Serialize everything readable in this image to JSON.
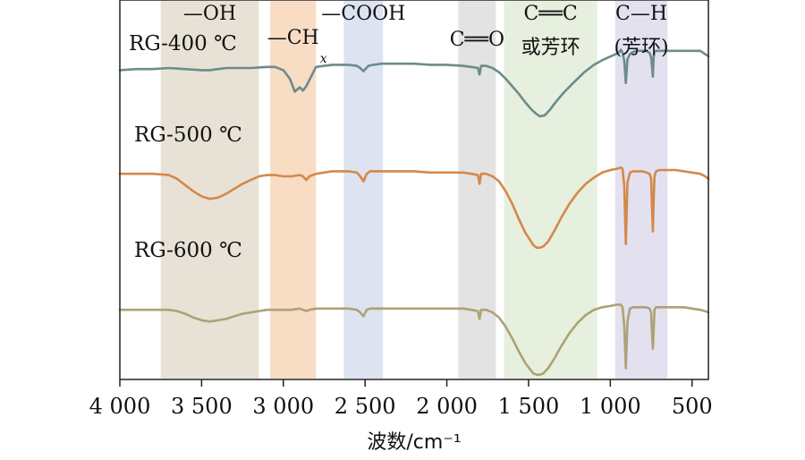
{
  "chart_data": {
    "type": "line",
    "title": "",
    "xlabel": "波数/cm⁻¹",
    "ylabel": "",
    "xlim": [
      4000,
      400
    ],
    "x_reversed": true,
    "grid": false,
    "x_ticks": [
      {
        "value": 4000,
        "label": "4 000"
      },
      {
        "value": 3500,
        "label": "3 500"
      },
      {
        "value": 3000,
        "label": "3 000"
      },
      {
        "value": 2500,
        "label": "2 500"
      },
      {
        "value": 2000,
        "label": "2 000"
      },
      {
        "value": 1500,
        "label": "1 500"
      },
      {
        "value": 1000,
        "label": "1 000"
      },
      {
        "value": 500,
        "label": "500"
      }
    ],
    "bands": [
      {
        "name": "oh",
        "from": 3750,
        "to": 3150,
        "color": "#e8e2d6",
        "labels": [
          "—OH"
        ]
      },
      {
        "name": "ch",
        "from": 3080,
        "to": 2800,
        "color": "#f8dcc4",
        "labels": [
          "—CH"
        ],
        "subscript": "x"
      },
      {
        "name": "cooh",
        "from": 2630,
        "to": 2390,
        "color": "#dde3f0",
        "labels": [
          "—COOH"
        ]
      },
      {
        "name": "co",
        "from": 1930,
        "to": 1700,
        "color": "#e3e3e3",
        "labels": [
          "C══O"
        ]
      },
      {
        "name": "cc",
        "from": 1650,
        "to": 1080,
        "color": "#e7efdf",
        "labels": [
          "C══C",
          "或芳环"
        ]
      },
      {
        "name": "chh",
        "from": 970,
        "to": 650,
        "color": "#e3e1ef",
        "labels": [
          "C—H",
          "(芳环)"
        ]
      }
    ],
    "series": [
      {
        "name": "RG-400 ℃",
        "color": "#6b8c8a",
        "x": [
          4000,
          3900,
          3800,
          3700,
          3600,
          3500,
          3450,
          3400,
          3350,
          3300,
          3200,
          3100,
          3050,
          3000,
          2960,
          2930,
          2900,
          2880,
          2860,
          2840,
          2800,
          2750,
          2700,
          2650,
          2600,
          2550,
          2530,
          2510,
          2480,
          2450,
          2400,
          2300,
          2200,
          2100,
          2000,
          1900,
          1850,
          1810,
          1800,
          1790,
          1760,
          1720,
          1680,
          1640,
          1600,
          1560,
          1520,
          1480,
          1450,
          1430,
          1400,
          1370,
          1330,
          1280,
          1220,
          1160,
          1100,
          1040,
          980,
          950,
          935,
          925,
          915,
          905,
          895,
          880,
          860,
          840,
          820,
          800,
          780,
          760,
          750,
          745,
          740,
          735,
          730,
          720,
          700,
          650,
          600,
          550,
          500,
          450,
          420,
          400
        ],
        "y": [
          68,
          69,
          69,
          70,
          69,
          68,
          68,
          69,
          70,
          70,
          70,
          71,
          71,
          68,
          60,
          48,
          52,
          49,
          53,
          59,
          71,
          72,
          73,
          73,
          73,
          72,
          70,
          67,
          72,
          73,
          74,
          74,
          74,
          73,
          73,
          72,
          71,
          70,
          64,
          72,
          72,
          70,
          66,
          60,
          53,
          46,
          38,
          31,
          27,
          25,
          26,
          31,
          39,
          48,
          57,
          66,
          73,
          78,
          82,
          84,
          87,
          84,
          77,
          56,
          78,
          83,
          85,
          86,
          86,
          86,
          86,
          84,
          80,
          72,
          62,
          80,
          85,
          86,
          86,
          86,
          86,
          86,
          86,
          86,
          83,
          81
        ]
      },
      {
        "name": "RG-500 ℃",
        "color": "#d4884a",
        "x": [
          4000,
          3900,
          3800,
          3700,
          3650,
          3600,
          3550,
          3500,
          3450,
          3400,
          3350,
          3300,
          3250,
          3200,
          3150,
          3100,
          3050,
          3000,
          2950,
          2900,
          2880,
          2860,
          2840,
          2800,
          2700,
          2600,
          2550,
          2530,
          2510,
          2490,
          2470,
          2400,
          2300,
          2200,
          2100,
          2000,
          1900,
          1850,
          1810,
          1800,
          1790,
          1760,
          1720,
          1680,
          1640,
          1600,
          1560,
          1520,
          1490,
          1470,
          1450,
          1430,
          1410,
          1380,
          1340,
          1300,
          1250,
          1200,
          1150,
          1100,
          1050,
          1000,
          960,
          935,
          925,
          915,
          905,
          895,
          880,
          860,
          840,
          820,
          800,
          780,
          760,
          750,
          745,
          740,
          735,
          730,
          720,
          700,
          650,
          600,
          550,
          500,
          450,
          420,
          400
        ],
        "y": [
          72,
          72,
          72,
          71,
          68,
          63,
          58,
          54,
          52,
          53,
          56,
          60,
          64,
          67,
          70,
          71,
          71,
          70,
          70,
          71,
          70,
          67,
          70,
          72,
          74,
          74,
          73,
          70,
          66,
          72,
          74,
          74,
          74,
          74,
          73,
          73,
          73,
          72,
          71,
          64,
          72,
          72,
          70,
          66,
          58,
          48,
          36,
          25,
          19,
          15,
          13,
          13,
          14,
          18,
          27,
          37,
          48,
          57,
          64,
          69,
          73,
          75,
          76,
          77,
          76,
          63,
          16,
          65,
          73,
          74,
          74,
          74,
          74,
          73,
          72,
          68,
          46,
          26,
          50,
          70,
          74,
          75,
          75,
          75,
          74,
          73,
          72,
          70,
          68
        ]
      },
      {
        "name": "RG-600 ℃",
        "color": "#ada276",
        "x": [
          4000,
          3900,
          3800,
          3700,
          3650,
          3600,
          3550,
          3500,
          3450,
          3400,
          3350,
          3300,
          3250,
          3200,
          3150,
          3100,
          3050,
          3000,
          2950,
          2900,
          2880,
          2860,
          2840,
          2800,
          2700,
          2600,
          2550,
          2530,
          2510,
          2490,
          2470,
          2400,
          2300,
          2200,
          2100,
          2000,
          1900,
          1850,
          1810,
          1800,
          1790,
          1760,
          1720,
          1680,
          1640,
          1600,
          1560,
          1520,
          1490,
          1470,
          1450,
          1430,
          1410,
          1380,
          1340,
          1300,
          1250,
          1200,
          1150,
          1100,
          1050,
          1000,
          960,
          935,
          925,
          915,
          905,
          895,
          880,
          860,
          840,
          820,
          800,
          780,
          760,
          750,
          745,
          740,
          735,
          730,
          720,
          700,
          650,
          600,
          550,
          500,
          450,
          420,
          400
        ],
        "y": [
          44,
          44,
          44,
          44,
          43,
          41,
          38,
          36,
          35,
          36,
          37,
          39,
          41,
          42,
          43,
          44,
          44,
          44,
          44,
          45,
          44,
          43,
          44,
          45,
          45,
          45,
          44,
          42,
          39,
          44,
          45,
          45,
          45,
          45,
          45,
          45,
          45,
          44,
          43,
          37,
          44,
          44,
          42,
          38,
          31,
          22,
          12,
          3,
          -2,
          -5,
          -6,
          -6,
          -5,
          -1,
          7,
          16,
          26,
          34,
          40,
          44,
          46,
          47,
          48,
          48,
          46,
          32,
          -1,
          35,
          45,
          46,
          46,
          46,
          46,
          46,
          45,
          42,
          26,
          14,
          28,
          44,
          46,
          46,
          46,
          46,
          46,
          45,
          44,
          43,
          42
        ]
      }
    ]
  }
}
